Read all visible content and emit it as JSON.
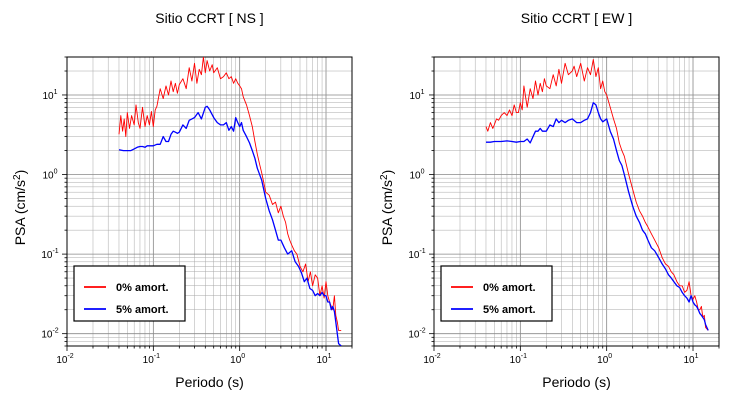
{
  "figure": {
    "background": "#ffffff",
    "grid_color": "#a8a8a8"
  },
  "chart_data": [
    {
      "type": "line",
      "title": "Sitio CCRT [ NS ]",
      "xlabel": "Periodo (s)",
      "ylabel": "PSA (cm/s²)",
      "xscale": "log",
      "yscale": "log",
      "xlim": [
        0.01,
        20
      ],
      "ylim": [
        0.007,
        30
      ],
      "xticks": [
        {
          "v": 0.01,
          "b": "10",
          "e": "-2"
        },
        {
          "v": 0.1,
          "b": "10",
          "e": "-1"
        },
        {
          "v": 1,
          "b": "10",
          "e": "0"
        },
        {
          "v": 10,
          "b": "10",
          "e": "1"
        }
      ],
      "yticks": [
        {
          "v": 0.01,
          "b": "10",
          "e": "-2"
        },
        {
          "v": 0.1,
          "b": "10",
          "e": "-1"
        },
        {
          "v": 1,
          "b": "10",
          "e": "0"
        },
        {
          "v": 10,
          "b": "10",
          "e": "1"
        }
      ],
      "grid": true,
      "legend_position": "bottom-left",
      "series": [
        {
          "name": "0% amort.",
          "color": "#ff0000",
          "x": [
            0.04,
            0.042,
            0.044,
            0.046,
            0.048,
            0.05,
            0.053,
            0.056,
            0.06,
            0.063,
            0.067,
            0.07,
            0.075,
            0.08,
            0.085,
            0.09,
            0.095,
            0.1,
            0.105,
            0.11,
            0.12,
            0.13,
            0.14,
            0.15,
            0.16,
            0.17,
            0.18,
            0.19,
            0.2,
            0.22,
            0.24,
            0.26,
            0.28,
            0.3,
            0.32,
            0.34,
            0.36,
            0.38,
            0.4,
            0.42,
            0.45,
            0.48,
            0.5,
            0.55,
            0.6,
            0.65,
            0.7,
            0.75,
            0.8,
            0.85,
            0.9,
            0.95,
            1.0,
            1.05,
            1.1,
            1.2,
            1.3,
            1.4,
            1.5,
            1.6,
            1.7,
            1.8,
            1.9,
            2.0,
            2.2,
            2.4,
            2.6,
            2.8,
            3.0,
            3.2,
            3.4,
            3.6,
            3.8,
            4.0,
            4.3,
            4.6,
            5.0,
            5.4,
            5.8,
            6.2,
            6.6,
            7.0,
            7.5,
            8.0,
            8.5,
            9.0,
            9.5,
            10.0,
            10.5,
            11.0,
            11.5,
            12.0,
            12.5,
            13.0,
            13.5,
            14.0,
            15.0
          ],
          "y": [
            3.2,
            5.5,
            3.5,
            5.0,
            3.0,
            6.0,
            3.8,
            5.5,
            4.2,
            7.5,
            4.5,
            3.8,
            7.0,
            4.0,
            5.5,
            4.2,
            6.2,
            4.0,
            6.5,
            7.2,
            12.0,
            9.0,
            13.0,
            10.0,
            15.0,
            11.0,
            14.0,
            10.5,
            13.5,
            16.0,
            12.0,
            22.0,
            15.0,
            25.0,
            14.0,
            21.0,
            18.0,
            30.0,
            19.0,
            27.0,
            20.0,
            24.0,
            19.0,
            22.0,
            16.0,
            17.0,
            19.0,
            16.0,
            17.0,
            14.0,
            16.0,
            14.0,
            13.0,
            12.0,
            9.5,
            7.5,
            5.5,
            4.0,
            2.6,
            1.8,
            1.35,
            1.05,
            0.8,
            0.6,
            0.55,
            0.42,
            0.45,
            0.33,
            0.4,
            0.3,
            0.25,
            0.18,
            0.15,
            0.13,
            0.11,
            0.1,
            0.07,
            0.06,
            0.075,
            0.045,
            0.06,
            0.04,
            0.055,
            0.05,
            0.03,
            0.04,
            0.028,
            0.045,
            0.03,
            0.025,
            0.022,
            0.02,
            0.03,
            0.017,
            0.014,
            0.011,
            0.011
          ]
        },
        {
          "name": "5% amort.",
          "color": "#0000ff",
          "x": [
            0.04,
            0.045,
            0.05,
            0.055,
            0.06,
            0.065,
            0.07,
            0.075,
            0.08,
            0.085,
            0.09,
            0.1,
            0.11,
            0.12,
            0.13,
            0.14,
            0.15,
            0.16,
            0.17,
            0.18,
            0.19,
            0.2,
            0.22,
            0.24,
            0.26,
            0.28,
            0.3,
            0.33,
            0.36,
            0.4,
            0.42,
            0.45,
            0.5,
            0.55,
            0.6,
            0.65,
            0.7,
            0.75,
            0.8,
            0.85,
            0.9,
            0.95,
            1.0,
            1.05,
            1.1,
            1.2,
            1.3,
            1.4,
            1.5,
            1.6,
            1.8,
            2.0,
            2.2,
            2.4,
            2.6,
            2.8,
            3.0,
            3.3,
            3.6,
            4.0,
            4.4,
            4.8,
            5.2,
            5.6,
            6.0,
            6.5,
            7.0,
            7.5,
            8.0,
            8.5,
            9.0,
            9.5,
            10.0,
            10.5,
            11.0,
            11.5,
            12.0,
            12.5,
            13.0,
            13.5,
            14.0,
            15.0
          ],
          "y": [
            2.05,
            2.0,
            2.0,
            2.0,
            2.1,
            2.2,
            2.25,
            2.25,
            2.2,
            2.3,
            2.3,
            2.3,
            2.4,
            2.4,
            3.0,
            2.6,
            2.6,
            3.2,
            3.5,
            3.4,
            3.3,
            3.4,
            4.2,
            3.8,
            4.8,
            5.0,
            5.2,
            6.0,
            5.0,
            7.0,
            7.2,
            6.5,
            5.2,
            4.5,
            4.2,
            4.2,
            4.5,
            3.6,
            4.0,
            3.5,
            5.2,
            4.5,
            4.0,
            4.5,
            3.6,
            3.0,
            2.5,
            2.0,
            1.6,
            1.2,
            0.85,
            0.5,
            0.35,
            0.27,
            0.2,
            0.15,
            0.15,
            0.12,
            0.1,
            0.11,
            0.08,
            0.07,
            0.058,
            0.045,
            0.05,
            0.037,
            0.035,
            0.03,
            0.032,
            0.03,
            0.033,
            0.03,
            0.03,
            0.025,
            0.025,
            0.02,
            0.022,
            0.019,
            0.014,
            0.01,
            0.0075,
            0.007
          ]
        }
      ]
    },
    {
      "type": "line",
      "title": "Sitio CCRT [ EW ]",
      "xlabel": "Periodo (s)",
      "ylabel": "PSA (cm/s²)",
      "xscale": "log",
      "yscale": "log",
      "xlim": [
        0.01,
        20
      ],
      "ylim": [
        0.007,
        30
      ],
      "xticks": [
        {
          "v": 0.01,
          "b": "10",
          "e": "-2"
        },
        {
          "v": 0.1,
          "b": "10",
          "e": "-1"
        },
        {
          "v": 1,
          "b": "10",
          "e": "0"
        },
        {
          "v": 10,
          "b": "10",
          "e": "1"
        }
      ],
      "yticks": [
        {
          "v": 0.01,
          "b": "10",
          "e": "-2"
        },
        {
          "v": 0.1,
          "b": "10",
          "e": "-1"
        },
        {
          "v": 1,
          "b": "10",
          "e": "0"
        },
        {
          "v": 10,
          "b": "10",
          "e": "1"
        }
      ],
      "grid": true,
      "legend_position": "bottom-left",
      "series": [
        {
          "name": "0% amort.",
          "color": "#ff0000",
          "x": [
            0.04,
            0.042,
            0.045,
            0.048,
            0.05,
            0.053,
            0.056,
            0.06,
            0.065,
            0.07,
            0.075,
            0.08,
            0.085,
            0.09,
            0.095,
            0.1,
            0.105,
            0.11,
            0.12,
            0.13,
            0.14,
            0.15,
            0.16,
            0.17,
            0.18,
            0.19,
            0.2,
            0.22,
            0.24,
            0.26,
            0.28,
            0.3,
            0.33,
            0.36,
            0.4,
            0.42,
            0.45,
            0.5,
            0.55,
            0.6,
            0.65,
            0.7,
            0.75,
            0.8,
            0.85,
            0.9,
            0.95,
            1.0,
            1.1,
            1.2,
            1.3,
            1.4,
            1.5,
            1.6,
            1.8,
            2.0,
            2.2,
            2.4,
            2.6,
            2.8,
            3.0,
            3.3,
            3.6,
            4.0,
            4.4,
            4.8,
            5.2,
            5.6,
            6.0,
            6.5,
            7.0,
            7.5,
            8.0,
            8.5,
            9.0,
            9.5,
            10.0,
            10.5,
            11.0,
            11.5,
            12.0,
            12.5,
            13.0,
            13.5,
            14.0,
            15.0
          ],
          "y": [
            4.0,
            3.5,
            4.5,
            3.8,
            4.2,
            5.0,
            4.8,
            5.5,
            6.0,
            5.5,
            6.5,
            5.5,
            7.5,
            6.0,
            6.0,
            8.0,
            6.5,
            13.0,
            7.0,
            12.0,
            9.0,
            15.0,
            10.0,
            14.0,
            11.0,
            16.0,
            13.0,
            12.0,
            18.0,
            13.0,
            21.0,
            14.0,
            25.0,
            18.0,
            20.0,
            23.0,
            17.0,
            25.0,
            15.0,
            22.0,
            18.0,
            28.0,
            17.0,
            22.0,
            12.0,
            15.0,
            11.0,
            10.0,
            7.0,
            5.0,
            3.8,
            2.5,
            2.0,
            1.7,
            1.0,
            0.65,
            0.45,
            0.35,
            0.3,
            0.25,
            0.22,
            0.18,
            0.15,
            0.12,
            0.09,
            0.075,
            0.07,
            0.06,
            0.055,
            0.045,
            0.04,
            0.04,
            0.033,
            0.035,
            0.045,
            0.03,
            0.027,
            0.03,
            0.025,
            0.02,
            0.02,
            0.022,
            0.016,
            0.017,
            0.012,
            0.011
          ]
        },
        {
          "name": "5% amort.",
          "color": "#0000ff",
          "x": [
            0.04,
            0.045,
            0.05,
            0.055,
            0.06,
            0.07,
            0.08,
            0.09,
            0.1,
            0.11,
            0.12,
            0.13,
            0.14,
            0.15,
            0.16,
            0.17,
            0.18,
            0.2,
            0.22,
            0.24,
            0.26,
            0.28,
            0.3,
            0.33,
            0.36,
            0.4,
            0.45,
            0.5,
            0.55,
            0.6,
            0.65,
            0.7,
            0.75,
            0.8,
            0.85,
            0.9,
            0.95,
            1.0,
            1.1,
            1.2,
            1.3,
            1.4,
            1.5,
            1.6,
            1.8,
            2.0,
            2.2,
            2.4,
            2.6,
            2.8,
            3.0,
            3.3,
            3.6,
            4.0,
            4.4,
            4.8,
            5.2,
            5.6,
            6.0,
            6.5,
            7.0,
            7.5,
            8.0,
            8.5,
            9.0,
            9.5,
            10.0,
            10.5,
            11.0,
            11.5,
            12.0,
            12.5,
            13.0,
            13.5,
            14.0,
            15.0
          ],
          "y": [
            2.55,
            2.55,
            2.6,
            2.6,
            2.6,
            2.65,
            2.6,
            2.55,
            2.6,
            2.6,
            2.8,
            2.5,
            3.0,
            3.5,
            3.5,
            3.8,
            3.5,
            3.5,
            4.2,
            4.0,
            5.0,
            4.5,
            4.8,
            4.5,
            4.8,
            5.0,
            4.5,
            4.5,
            4.8,
            5.0,
            6.0,
            8.0,
            7.5,
            6.0,
            5.0,
            4.6,
            4.8,
            5.0,
            3.5,
            2.8,
            2.0,
            1.5,
            1.3,
            1.0,
            0.6,
            0.4,
            0.3,
            0.25,
            0.2,
            0.18,
            0.15,
            0.12,
            0.11,
            0.09,
            0.075,
            0.065,
            0.055,
            0.05,
            0.045,
            0.04,
            0.038,
            0.033,
            0.03,
            0.028,
            0.025,
            0.03,
            0.025,
            0.023,
            0.022,
            0.02,
            0.018,
            0.017,
            0.016,
            0.015,
            0.013,
            0.011
          ]
        }
      ]
    }
  ]
}
